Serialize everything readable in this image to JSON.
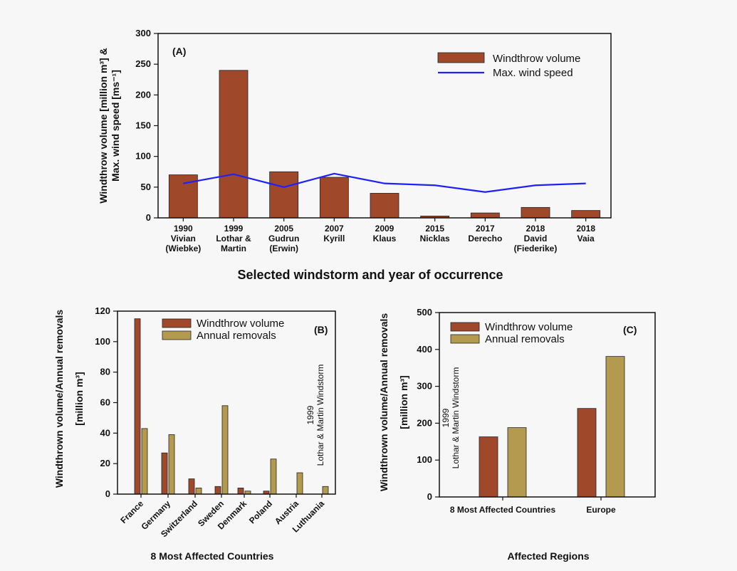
{
  "chart_data": [
    {
      "panel": "(A)",
      "type": "bar",
      "categories": [
        [
          "1990",
          "Vivian",
          "(Wiebke)"
        ],
        [
          "1999",
          "Lothar &",
          "Martin"
        ],
        [
          "2005",
          "Gudrun",
          "(Erwin)"
        ],
        [
          "2007",
          "Kyrill"
        ],
        [
          "2009",
          "Klaus"
        ],
        [
          "2015",
          "Nicklas"
        ],
        [
          "2017",
          "Derecho"
        ],
        [
          "2018",
          "David",
          "(Fiederike)"
        ],
        [
          "2018",
          "Vaia"
        ]
      ],
      "series": [
        {
          "name": "Windthrow volume",
          "type": "bar",
          "color": "#a0492a",
          "values": [
            70,
            240,
            75,
            66,
            40,
            3,
            8,
            17,
            12
          ]
        },
        {
          "name": "Max. wind speed",
          "type": "line",
          "color": "#1f1fff",
          "values": [
            56,
            71,
            50,
            72,
            56,
            53,
            42,
            53,
            56
          ]
        }
      ],
      "ylabel_lines": [
        "Windthrow volume [million m³] &",
        "Max. wind speed [ms⁻¹]"
      ],
      "xlabel": "Selected windstorm and year of occurrence",
      "ylim": [
        0,
        300
      ],
      "yticks": [
        0,
        50,
        100,
        150,
        200,
        250,
        300
      ],
      "legend_position": "top-right"
    },
    {
      "panel": "(B)",
      "type": "bar",
      "categories": [
        "France",
        "Germany",
        "Switzerland",
        "Sweden",
        "Denmark",
        "Poland",
        "Austria",
        "Luthuania"
      ],
      "series": [
        {
          "name": "Windthrow volume",
          "color": "#a0492a",
          "values": [
            115,
            27,
            10,
            5,
            4,
            2,
            0,
            0
          ]
        },
        {
          "name": "Annual removals",
          "color": "#b49a4e",
          "values": [
            43,
            39,
            4,
            58,
            2,
            23,
            14,
            5
          ]
        }
      ],
      "ylabel_lines": [
        "Windthrown volume/Annual removals",
        "[million m³]"
      ],
      "xlabel": "8 Most Affected Countries",
      "annotation": [
        "1999",
        "Lothar & Martin Windstorm"
      ],
      "ylim": [
        0,
        120
      ],
      "yticks": [
        0,
        20,
        40,
        60,
        80,
        100,
        120
      ],
      "legend_position": "top-center"
    },
    {
      "panel": "(C)",
      "type": "bar",
      "categories": [
        "8 Most Affected Countries",
        "Europe"
      ],
      "series": [
        {
          "name": "Windthrow volume",
          "color": "#a0492a",
          "values": [
            163,
            240
          ]
        },
        {
          "name": "Annual removals",
          "color": "#b49a4e",
          "values": [
            188,
            381
          ]
        }
      ],
      "ylabel_lines": [
        "Windthrown volume/Annual removals",
        "[million m³]"
      ],
      "xlabel": "Affected Regions",
      "annotation": [
        "1999",
        "Lothar & Martin Windstorm"
      ],
      "ylim": [
        0,
        500
      ],
      "yticks": [
        0,
        100,
        200,
        300,
        400,
        500
      ],
      "legend_position": "top-left"
    }
  ]
}
